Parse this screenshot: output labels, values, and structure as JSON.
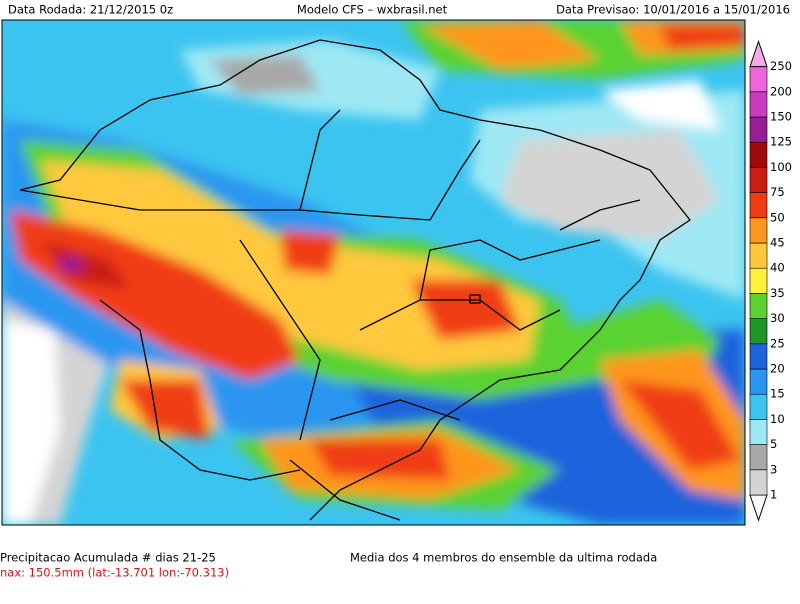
{
  "header": {
    "left": "Data Rodada: 21/12/2015 0z",
    "center": "Modelo CFS – wxbrasil.net",
    "right": "Data Previsao: 10/01/2016 a 15/01/2016"
  },
  "colorbar": {
    "labels": [
      "1",
      "3",
      "5",
      "10",
      "15",
      "20",
      "25",
      "30",
      "35",
      "40",
      "45",
      "50",
      "75",
      "100",
      "125",
      "150",
      "200",
      "250"
    ],
    "colors": [
      "#ffffff",
      "#d4d4d4",
      "#a8a8a8",
      "#9ee8f4",
      "#3cc4f0",
      "#2a96f0",
      "#1e64dc",
      "#1e9628",
      "#5ad232",
      "#fff03c",
      "#ffc83c",
      "#ff961e",
      "#f03c14",
      "#c81e14",
      "#a00a0a",
      "#961e96",
      "#c83cbe",
      "#f064dc",
      "#f8aae6"
    ]
  },
  "footer": {
    "title": "Precipitacao Acumulada # dias 21-25",
    "max": "nax: 150.5mm (lat:-13.701 lon:-70.313)",
    "note": "Media dos 4 membros do ensemble da ultima rodada"
  }
}
